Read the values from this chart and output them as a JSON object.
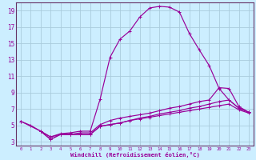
{
  "xlabel": "Windchill (Refroidissement éolien,°C)",
  "background_color": "#cceeff",
  "grid_color": "#aaccdd",
  "line_color": "#990099",
  "spine_color": "#663366",
  "xlim": [
    -0.5,
    23.5
  ],
  "ylim": [
    2.5,
    20.0
  ],
  "yticks": [
    3,
    5,
    7,
    9,
    11,
    13,
    15,
    17,
    19
  ],
  "xticks": [
    0,
    1,
    2,
    3,
    4,
    5,
    6,
    7,
    8,
    9,
    10,
    11,
    12,
    13,
    14,
    15,
    16,
    17,
    18,
    19,
    20,
    21,
    22,
    23
  ],
  "lines": [
    {
      "x": [
        0,
        1,
        2,
        3,
        4,
        5,
        6,
        7,
        8,
        9,
        10,
        11,
        12,
        13,
        14,
        15,
        16,
        17,
        18,
        19,
        20,
        21,
        22,
        23
      ],
      "y": [
        5.5,
        5.0,
        4.3,
        3.6,
        4.0,
        4.1,
        4.3,
        4.3,
        8.2,
        13.3,
        15.5,
        16.5,
        18.2,
        19.3,
        19.5,
        19.4,
        18.8,
        16.2,
        14.2,
        12.3,
        9.5,
        8.1,
        7.1,
        6.6
      ]
    },
    {
      "x": [
        0,
        2,
        3,
        4,
        5,
        6,
        7,
        8,
        9,
        10,
        11,
        12,
        13,
        14,
        15,
        16,
        17,
        18,
        19,
        20,
        21,
        22,
        23
      ],
      "y": [
        5.5,
        4.3,
        3.6,
        3.9,
        3.9,
        4.1,
        4.1,
        5.1,
        5.6,
        5.9,
        6.1,
        6.3,
        6.5,
        6.8,
        7.1,
        7.3,
        7.6,
        7.9,
        8.1,
        9.6,
        9.5,
        7.3,
        6.6
      ]
    },
    {
      "x": [
        2,
        3,
        4,
        5,
        6,
        7,
        8,
        9,
        10,
        11,
        12,
        13,
        14,
        15,
        16,
        17,
        18,
        19,
        20,
        21,
        22,
        23
      ],
      "y": [
        4.3,
        3.3,
        3.9,
        3.9,
        3.9,
        3.9,
        4.9,
        5.1,
        5.3,
        5.6,
        5.9,
        6.1,
        6.4,
        6.6,
        6.8,
        7.1,
        7.3,
        7.6,
        7.9,
        8.1,
        7.1,
        6.6
      ]
    },
    {
      "x": [
        2,
        3,
        4,
        5,
        6,
        7,
        8,
        9,
        10,
        11,
        12,
        13,
        14,
        15,
        16,
        17,
        18,
        19,
        20,
        21,
        22,
        23
      ],
      "y": [
        4.3,
        3.3,
        3.9,
        3.9,
        3.9,
        3.9,
        4.9,
        5.1,
        5.3,
        5.6,
        5.8,
        6.0,
        6.2,
        6.4,
        6.6,
        6.8,
        7.0,
        7.2,
        7.4,
        7.6,
        6.9,
        6.5
      ]
    }
  ]
}
